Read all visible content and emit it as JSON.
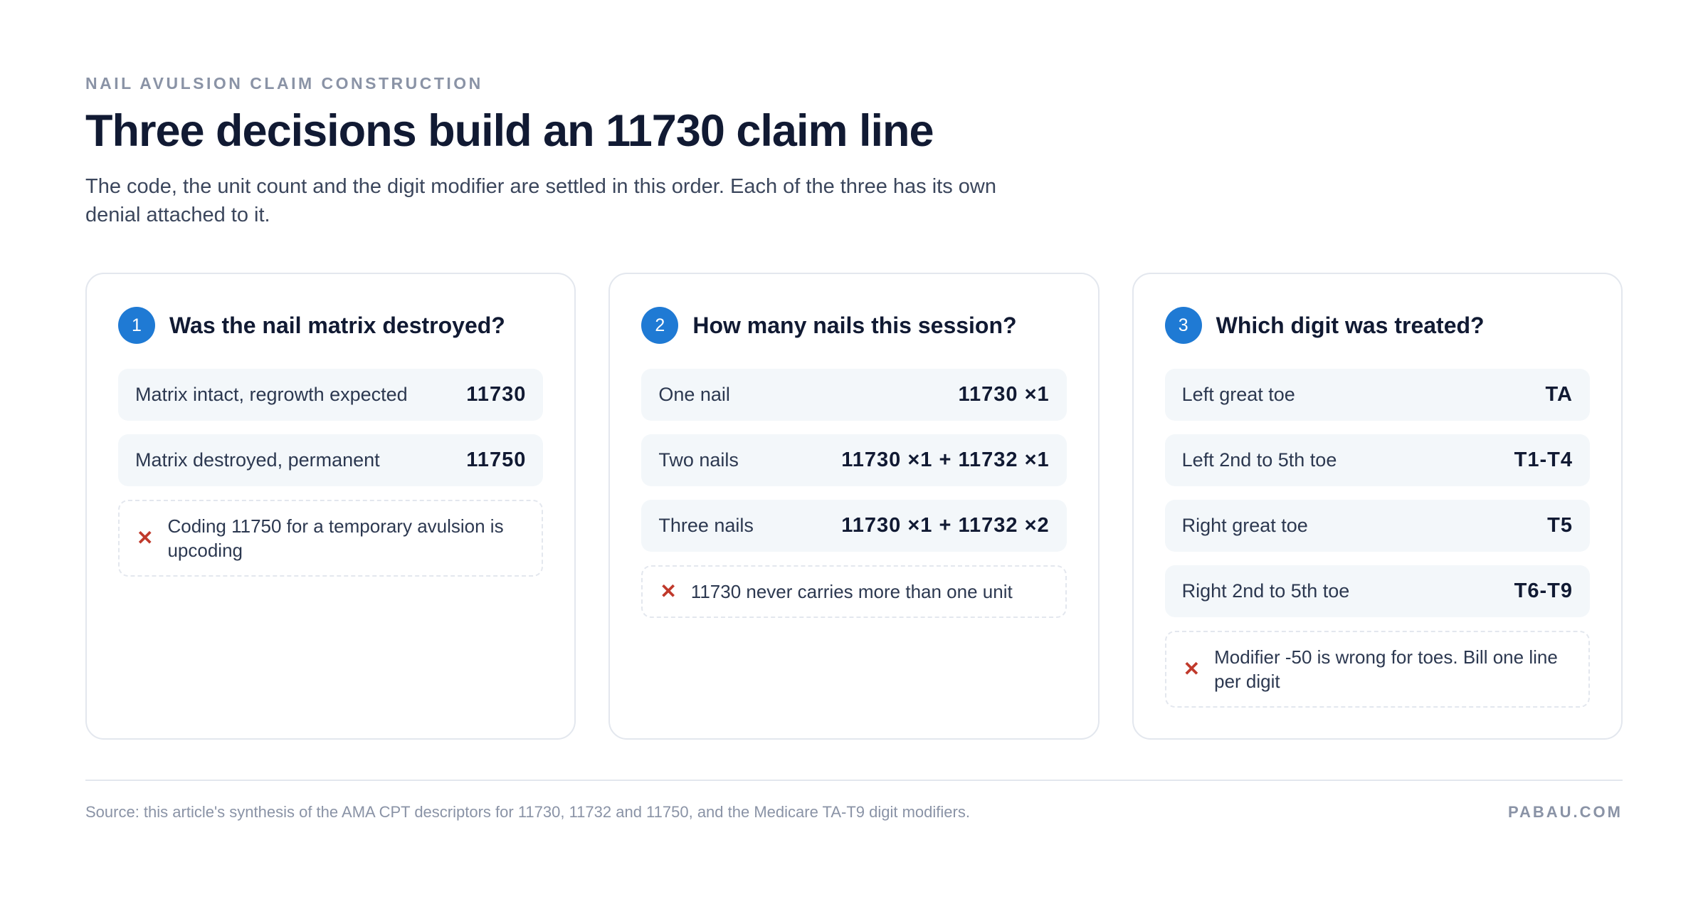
{
  "header": {
    "eyebrow": "NAIL AVULSION CLAIM CONSTRUCTION",
    "title": "Three decisions build an 11730 claim line",
    "subtitle": "The code, the unit count and the digit modifier are settled in this order. Each of the three has its own denial attached to it."
  },
  "cards": [
    {
      "number": "1",
      "question": "Was the nail matrix destroyed?",
      "options": [
        {
          "label": "Matrix intact, regrowth expected",
          "code": "11730"
        },
        {
          "label": "Matrix destroyed, permanent",
          "code": "11750"
        }
      ],
      "note": "Coding 11750 for a temporary avulsion is upcoding"
    },
    {
      "number": "2",
      "question": "How many nails this session?",
      "options": [
        {
          "label": "One nail",
          "code": "11730 ×1"
        },
        {
          "label": "Two nails",
          "code": "11730 ×1 + 11732 ×1"
        },
        {
          "label": "Three nails",
          "code": "11730 ×1 + 11732 ×2"
        }
      ],
      "note": "11730 never carries more than one unit"
    },
    {
      "number": "3",
      "question": "Which digit was treated?",
      "options": [
        {
          "label": "Left great toe",
          "code": "TA"
        },
        {
          "label": "Left 2nd to 5th toe",
          "code": "T1-T4"
        },
        {
          "label": "Right great toe",
          "code": "T5"
        },
        {
          "label": "Right 2nd to 5th toe",
          "code": "T6-T9"
        }
      ],
      "note": "Modifier -50 is wrong for toes. Bill one line per digit"
    }
  ],
  "footer": {
    "source": "Source: this article's synthesis of the AMA CPT descriptors for 11730, 11732 and 11750, and the Medicare TA-T9 digit modifiers.",
    "brand": "PABAU.COM"
  }
}
